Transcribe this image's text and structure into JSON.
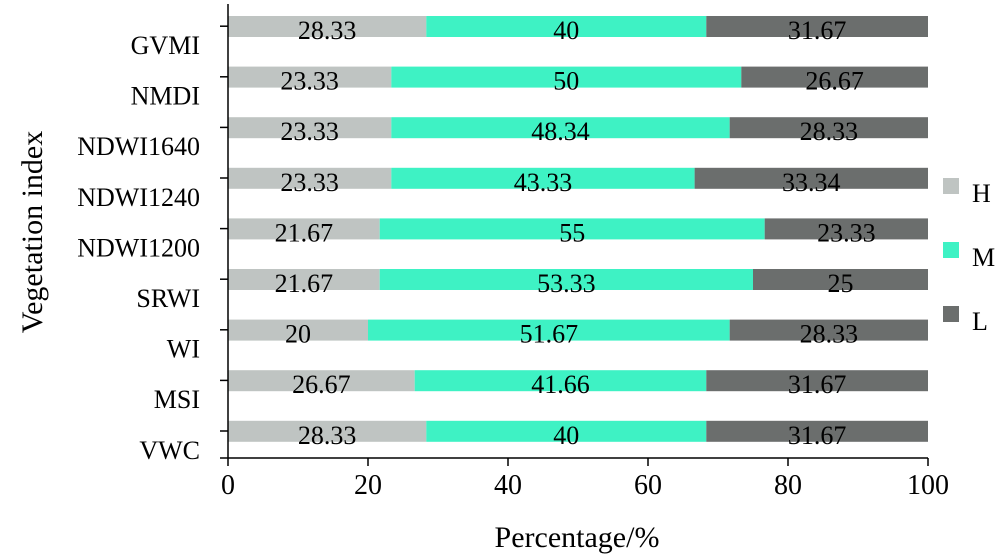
{
  "chart_data": {
    "type": "bar",
    "orientation": "horizontal",
    "stacked": true,
    "categories": [
      "GVMI",
      "NMDI",
      "NDWI1640",
      "NDWI1240",
      "NDWI1200",
      "SRWI",
      "WI",
      "MSI",
      "VWC"
    ],
    "series": [
      {
        "name": "H",
        "color": "#bfc4c2",
        "values": [
          28.33,
          23.33,
          23.33,
          23.33,
          21.67,
          21.67,
          20,
          26.67,
          28.33
        ],
        "labels": [
          "28.33",
          "23.33",
          "23.33",
          "23.33",
          "21.67",
          "21.67",
          "20",
          "26.67",
          "28.33"
        ]
      },
      {
        "name": "M",
        "color": "#3ef2c4",
        "values": [
          40,
          50,
          48.34,
          43.33,
          55,
          53.33,
          51.67,
          41.66,
          40
        ],
        "labels": [
          "40",
          "50",
          "48.34",
          "43.33",
          "55",
          "53.33",
          "51.67",
          "41.66",
          "40"
        ]
      },
      {
        "name": "L",
        "color": "#6b6e6d",
        "values": [
          31.67,
          26.67,
          28.33,
          33.34,
          23.33,
          25,
          28.33,
          31.67,
          31.67
        ],
        "labels": [
          "31.67",
          "26.67",
          "28.33",
          "33.34",
          "23.33",
          "25",
          "28.33",
          "31.67",
          "31.67"
        ]
      }
    ],
    "xlabel": "Percentage/%",
    "ylabel": "Vegetation index",
    "xlim": [
      0,
      100
    ],
    "xticks": [
      "0",
      "20",
      "40",
      "60",
      "80",
      "100"
    ],
    "grid": false,
    "legend_position": "right"
  }
}
